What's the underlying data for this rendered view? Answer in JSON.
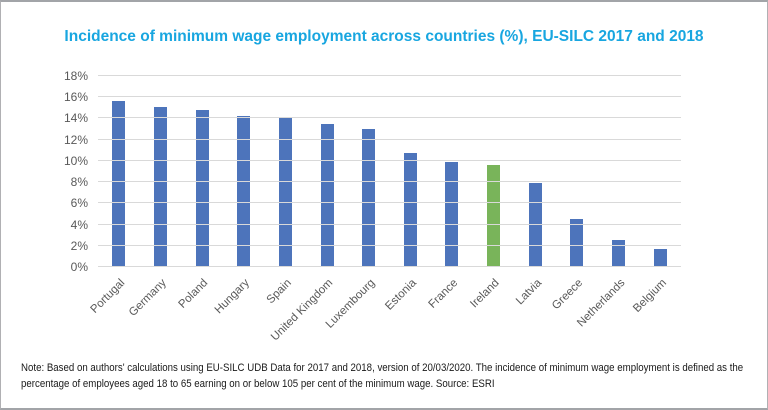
{
  "header": {
    "title": "Incidence of minimum wage employment across countries (%), EU-SILC 2017 and 2018"
  },
  "colors": {
    "title": "#18a6e0",
    "bar": "#4d74bb",
    "highlight_bar": "#79b45a",
    "gridline": "#d9d9d9",
    "axis_text": "#595959",
    "note_text": "#1a1a1a"
  },
  "chart_data": {
    "type": "bar",
    "title": "Incidence of minimum wage employment across countries (%), EU-SILC 2017 and 2018",
    "categories": [
      "Portugal",
      "Germany",
      "Poland",
      "Hungary",
      "Spain",
      "United Kingdom",
      "Luxembourg",
      "Estonia",
      "France",
      "Ireland",
      "Latvia",
      "Greece",
      "Netherlands",
      "Belgium"
    ],
    "values": [
      15.6,
      15.1,
      14.8,
      14.2,
      14.0,
      13.5,
      13.0,
      10.7,
      9.9,
      9.6,
      7.9,
      4.5,
      2.5,
      1.7
    ],
    "xlabel": "",
    "ylabel": "",
    "ylim": [
      0,
      18
    ],
    "ytick_step": 2,
    "ytick_labels": [
      "0%",
      "2%",
      "4%",
      "6%",
      "8%",
      "10%",
      "12%",
      "14%",
      "16%",
      "18%"
    ],
    "grid": true,
    "legend": "none",
    "bar_color": "#4d74bb",
    "highlight_category": "Ireland",
    "highlight_color": "#79b45a"
  },
  "note_lines": [
    "Note: Based on authors' calculations using EU-SILC UDB Data for 2017 and 2018, version of 20/03/2020. The incidence of minimum wage employment is defined as the",
    "percentage of employees aged 18 to 65 earning on or below 105 per cent of the minimum wage. Source: ESRI"
  ]
}
